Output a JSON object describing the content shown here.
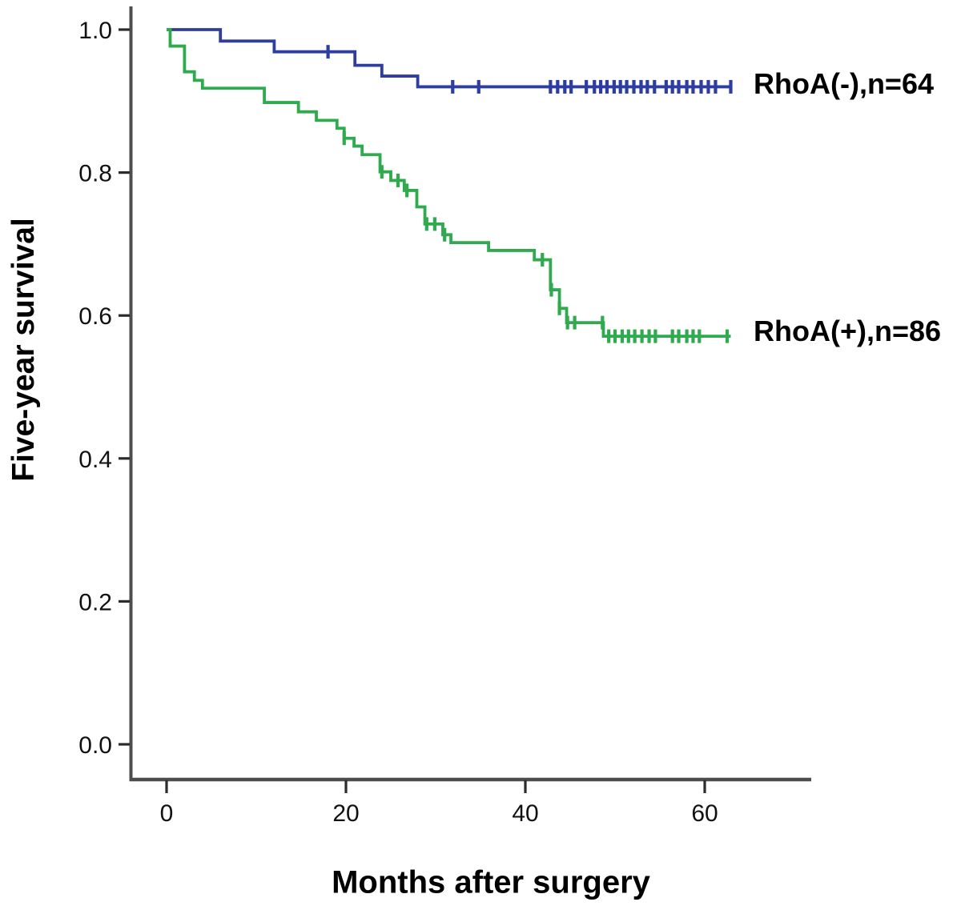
{
  "figure": {
    "background": "#ffffff",
    "axis_color": "#4d4d4d",
    "tick_color": "#2b2b2b",
    "text_color": "#000000"
  },
  "chart_data": {
    "type": "line",
    "subtype": "kaplan-meier-step",
    "title": "",
    "xlabel": "Months after surgery",
    "ylabel": "Five-year survival",
    "xlim": [
      -4,
      72
    ],
    "ylim": [
      -0.05,
      1.03
    ],
    "grid": false,
    "legend_position": "right of curve ends",
    "xticks": [
      {
        "value": 0,
        "label": "0"
      },
      {
        "value": 20,
        "label": "20"
      },
      {
        "value": 40,
        "label": "40"
      },
      {
        "value": 60,
        "label": "60"
      }
    ],
    "yticks": [
      {
        "value": 1.0,
        "label": "1.0"
      },
      {
        "value": 0.8,
        "label": "0.8"
      },
      {
        "value": 0.6,
        "label": "0.6"
      },
      {
        "value": 0.4,
        "label": "0.4"
      },
      {
        "value": 0.2,
        "label": "0.2"
      },
      {
        "value": 0.0,
        "label": "0.0"
      }
    ],
    "series": [
      {
        "name": "RhoA(-),n=64",
        "group": "RhoA negative",
        "n": 64,
        "color": "#2e3da0",
        "end_month": 63,
        "steps": [
          [
            0,
            1.0
          ],
          [
            6,
            0.984
          ],
          [
            12,
            0.969
          ],
          [
            21,
            0.95
          ],
          [
            24,
            0.935
          ],
          [
            28,
            0.92
          ]
        ],
        "censor_times": [
          18,
          31.9,
          34.8,
          42.8,
          43.6,
          44.4,
          45.1,
          46.8,
          47.7,
          48.4,
          49.1,
          49.9,
          50.6,
          51.3,
          52.1,
          52.9,
          53.6,
          54.4,
          55.7,
          56.4,
          57.1,
          58.0,
          58.7,
          59.6,
          60.4,
          61.2,
          62.9
        ]
      },
      {
        "name": "RhoA(+),n=86",
        "group": "RhoA positive",
        "n": 86,
        "color": "#2faa4e",
        "end_month": 62.9,
        "steps": [
          [
            0,
            1.0
          ],
          [
            0.4,
            0.977
          ],
          [
            2,
            0.941
          ],
          [
            3.1,
            0.929
          ],
          [
            4,
            0.918
          ],
          [
            10.9,
            0.898
          ],
          [
            14.7,
            0.885
          ],
          [
            16.7,
            0.873
          ],
          [
            19,
            0.862
          ],
          [
            19.8,
            0.848
          ],
          [
            20.9,
            0.837
          ],
          [
            21.8,
            0.825
          ],
          [
            23.8,
            0.801
          ],
          [
            25,
            0.789
          ],
          [
            26.5,
            0.775
          ],
          [
            27.9,
            0.752
          ],
          [
            28.8,
            0.728
          ],
          [
            30.8,
            0.713
          ],
          [
            31.7,
            0.702
          ],
          [
            35.9,
            0.691
          ],
          [
            41,
            0.678
          ],
          [
            42.8,
            0.636
          ],
          [
            43.8,
            0.61
          ],
          [
            44.6,
            0.59
          ],
          [
            48.7,
            0.571
          ]
        ],
        "censor_times": [
          19.8,
          24.0,
          25.8,
          26.8,
          29.0,
          29.9,
          31.0,
          41.9,
          42.9,
          43.8,
          44.7,
          45.5,
          48.6,
          49.3,
          50.0,
          50.8,
          51.5,
          52.2,
          53.0,
          53.8,
          54.5,
          56.4,
          57.1,
          58.0,
          58.7,
          59.4,
          62.5
        ]
      }
    ]
  }
}
